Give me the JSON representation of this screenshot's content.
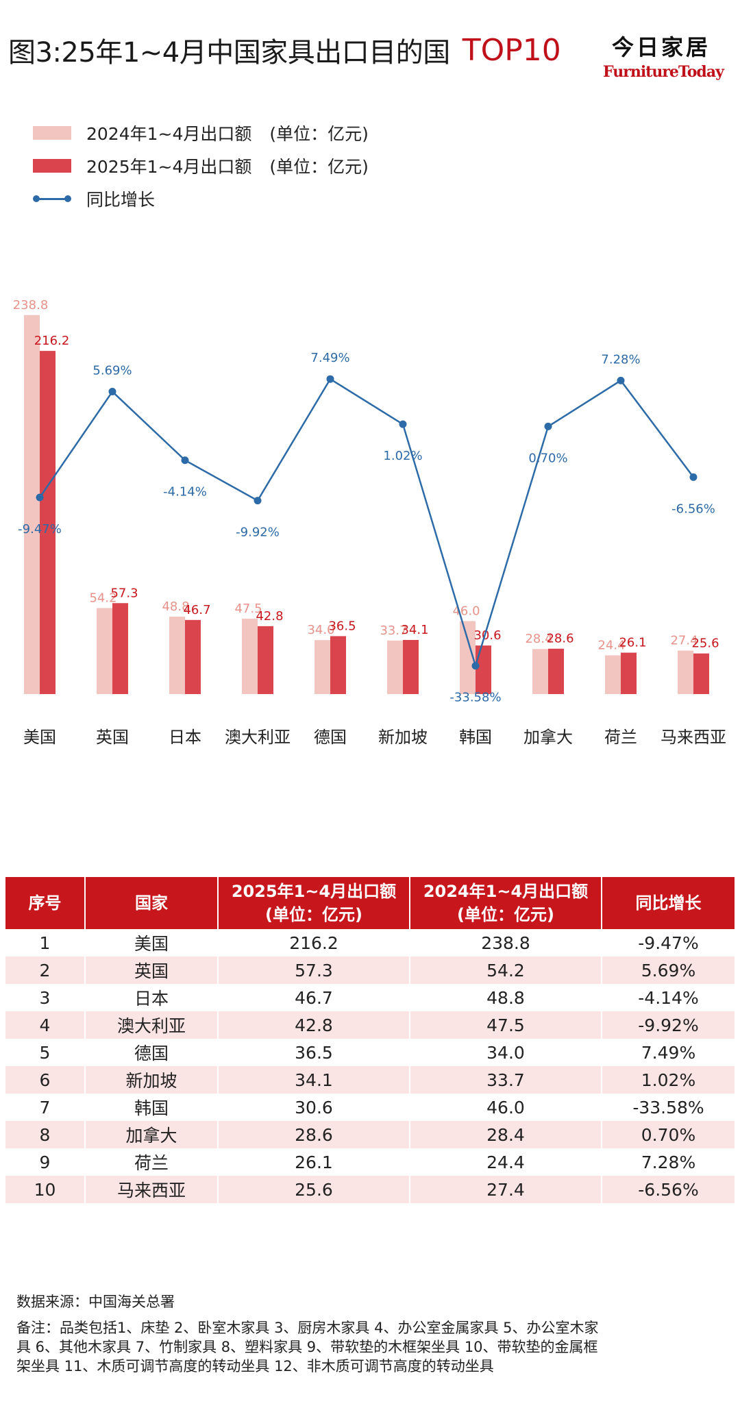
{
  "header": {
    "title": "图3:25年1~4月中国家具出口目的国",
    "title_highlight": "TOP10",
    "brand_cn": "今日家居",
    "brand_en": "FurnitureToday"
  },
  "legend": {
    "items": [
      {
        "label": "2024年1~4月出口额",
        "unit": "(单位：亿元)",
        "color": "#f3c5c0",
        "kind": "bar"
      },
      {
        "label": "2025年1~4月出口额",
        "unit": "(单位：亿元)",
        "color": "#d9444d",
        "kind": "bar"
      },
      {
        "label": "同比增长",
        "unit": "",
        "color": "#2c6aa8",
        "kind": "line"
      }
    ]
  },
  "chart_data": {
    "type": "bar",
    "categories": [
      "美国",
      "英国",
      "日本",
      "澳大利亚",
      "德国",
      "新加坡",
      "韩国",
      "加拿大",
      "荷兰",
      "马来西亚"
    ],
    "series": [
      {
        "name": "2024年1~4月出口额",
        "values": [
          238.8,
          54.2,
          48.8,
          47.5,
          34.0,
          33.7,
          46.0,
          28.4,
          24.4,
          27.4
        ],
        "labels": [
          "238.8",
          "54.2",
          "48.8",
          "47.5",
          "34.0",
          "33.7",
          "46.0",
          "28.4",
          "24.4",
          "27.4"
        ],
        "color": "#f3c5c0",
        "label_color": "#e8928a"
      },
      {
        "name": "2025年1~4月出口额",
        "values": [
          216.2,
          57.3,
          46.7,
          42.8,
          36.5,
          34.1,
          30.6,
          28.6,
          26.1,
          25.6
        ],
        "labels": [
          "216.2",
          "57.3",
          "46.7",
          "42.8",
          "36.5",
          "34.1",
          "30.6",
          "28.6",
          "26.1",
          "25.6"
        ],
        "color": "#d9444d",
        "label_color": "#c8161d"
      },
      {
        "name": "同比增长",
        "type": "line",
        "values": [
          -9.47,
          5.69,
          -4.14,
          -9.92,
          7.49,
          1.02,
          -33.58,
          0.7,
          7.28,
          -6.56
        ],
        "labels": [
          "-9.47%",
          "5.69%",
          "-4.14%",
          "-9.92%",
          "7.49%",
          "1.02%",
          "-33.58%",
          "0.70%",
          "7.28%",
          "-6.56%"
        ],
        "color": "#2c6aa8"
      }
    ],
    "ylim": [
      0,
      240
    ],
    "y2lim": [
      -34,
      8
    ],
    "grid": false
  },
  "table": {
    "headers": [
      {
        "l1": "序号",
        "l2": ""
      },
      {
        "l1": "国家",
        "l2": ""
      },
      {
        "l1": "2025年1~4月出口额",
        "l2": "(单位：亿元)"
      },
      {
        "l1": "2024年1~4月出口额",
        "l2": "(单位：亿元)"
      },
      {
        "l1": "同比增长",
        "l2": ""
      }
    ],
    "rows": [
      [
        "1",
        "美国",
        "216.2",
        "238.8",
        "-9.47%"
      ],
      [
        "2",
        "英国",
        "57.3",
        "54.2",
        "5.69%"
      ],
      [
        "3",
        "日本",
        "46.7",
        "48.8",
        "-4.14%"
      ],
      [
        "4",
        "澳大利亚",
        "42.8",
        "47.5",
        "-9.92%"
      ],
      [
        "5",
        "德国",
        "36.5",
        "34.0",
        "7.49%"
      ],
      [
        "6",
        "新加坡",
        "34.1",
        "33.7",
        "1.02%"
      ],
      [
        "7",
        "韩国",
        "30.6",
        "46.0",
        "-33.58%"
      ],
      [
        "8",
        "加拿大",
        "28.6",
        "28.4",
        "0.70%"
      ],
      [
        "9",
        "荷兰",
        "26.1",
        "24.4",
        "7.28%"
      ],
      [
        "10",
        "马来西亚",
        "25.6",
        "27.4",
        "-6.56%"
      ]
    ]
  },
  "footer": {
    "source": "数据来源：中国海关总署",
    "note": "备注：品类包括1、床垫 2、卧室木家具 3、厨房木家具 4、办公室金属家具 5、办公室木家具 6、其他木家具 7、竹制家具 8、塑料家具 9、带软垫的木框架坐具 10、带软垫的金属框架坐具 11、木质可调节高度的转动坐具 12、非木质可调节高度的转动坐具"
  }
}
